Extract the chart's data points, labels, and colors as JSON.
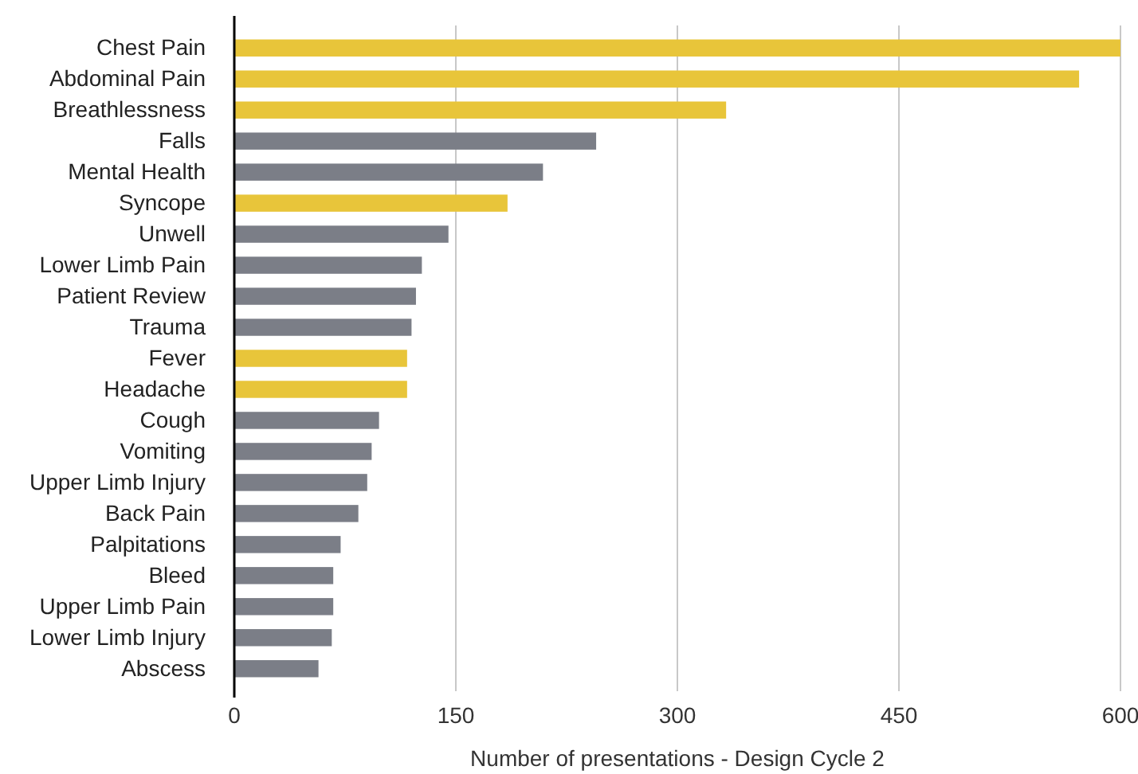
{
  "chart_data": {
    "type": "bar",
    "orientation": "horizontal",
    "xlabel": "Number of presentations - Design Cycle 2",
    "categories": [
      "Chest Pain",
      "Abdominal Pain",
      "Breathlessness",
      "Falls",
      "Mental Health",
      "Syncope",
      "Unwell",
      "Lower Limb Pain",
      "Patient Review",
      "Trauma",
      "Fever",
      "Headache",
      "Cough",
      "Vomiting",
      "Upper Limb Injury",
      "Back Pain",
      "Palpitations",
      "Bleed",
      "Upper Limb Pain",
      "Lower Limb Injury",
      "Abscess"
    ],
    "values": [
      600,
      572,
      333,
      245,
      209,
      185,
      145,
      127,
      123,
      120,
      117,
      117,
      98,
      93,
      90,
      84,
      72,
      67,
      67,
      66,
      57
    ],
    "colors": [
      "#e8c53a",
      "#e8c53a",
      "#e8c53a",
      "#7b7e87",
      "#7b7e87",
      "#e8c53a",
      "#7b7e87",
      "#7b7e87",
      "#7b7e87",
      "#7b7e87",
      "#e8c53a",
      "#e8c53a",
      "#7b7e87",
      "#7b7e87",
      "#7b7e87",
      "#7b7e87",
      "#7b7e87",
      "#7b7e87",
      "#7b7e87",
      "#7b7e87",
      "#7b7e87"
    ],
    "xlim": [
      0,
      600
    ],
    "xticks": [
      0,
      150,
      300,
      450,
      600
    ],
    "grid": "x"
  }
}
